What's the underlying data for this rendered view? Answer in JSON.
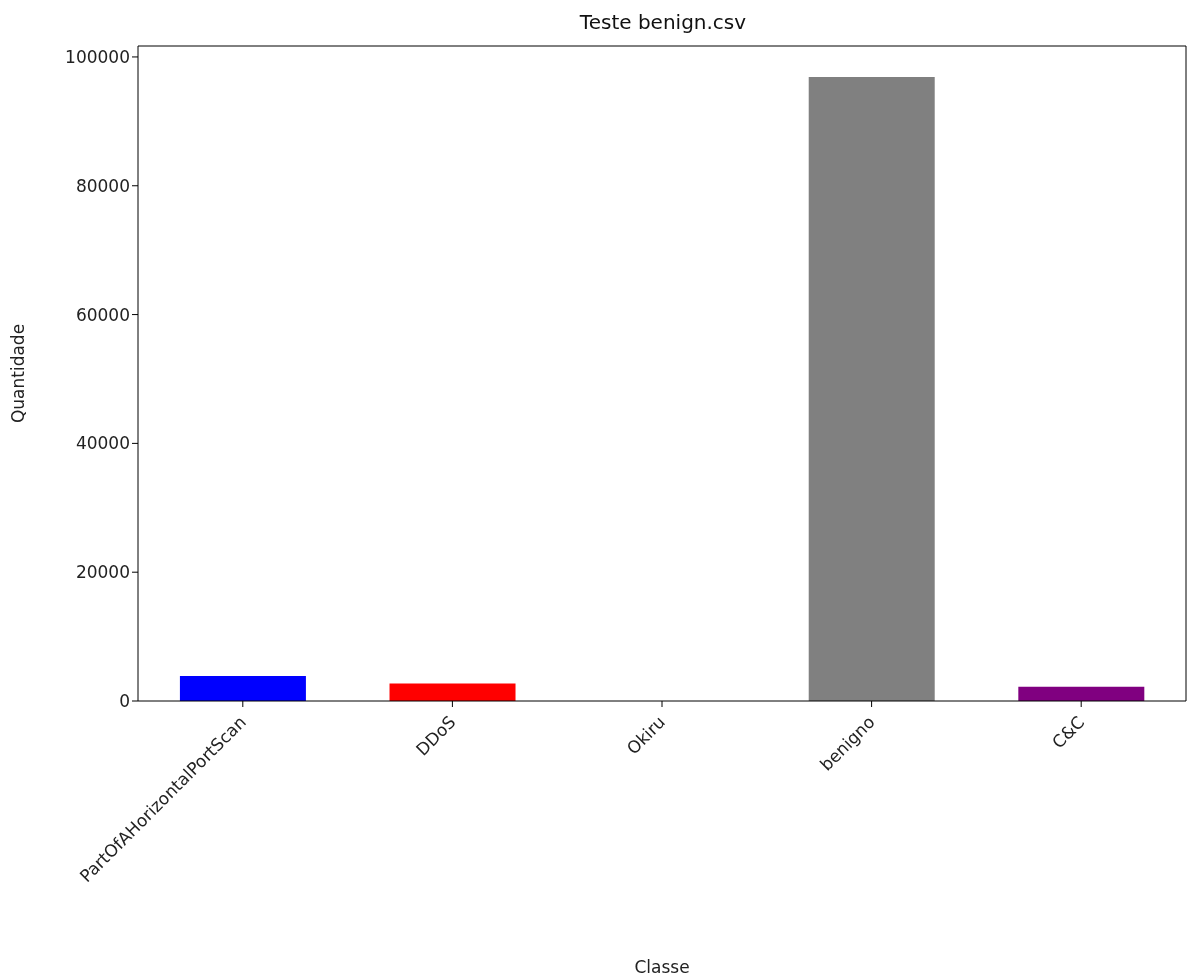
{
  "chart_data": {
    "type": "bar",
    "title": "Teste benign.csv",
    "xlabel": "Classe",
    "ylabel": "Quantidade",
    "categories": [
      "PartOfAHorizontalPortScan",
      "DDoS",
      "Okiru",
      "benigno",
      "C&C"
    ],
    "values": [
      3900,
      2700,
      0,
      96900,
      2200
    ],
    "colors": [
      "#0000ff",
      "#ff0000",
      "#008000",
      "#808080",
      "#800080"
    ],
    "ylim": [
      0,
      101700
    ],
    "yticks": [
      0,
      20000,
      40000,
      60000,
      80000,
      100000
    ],
    "grid": false
  }
}
